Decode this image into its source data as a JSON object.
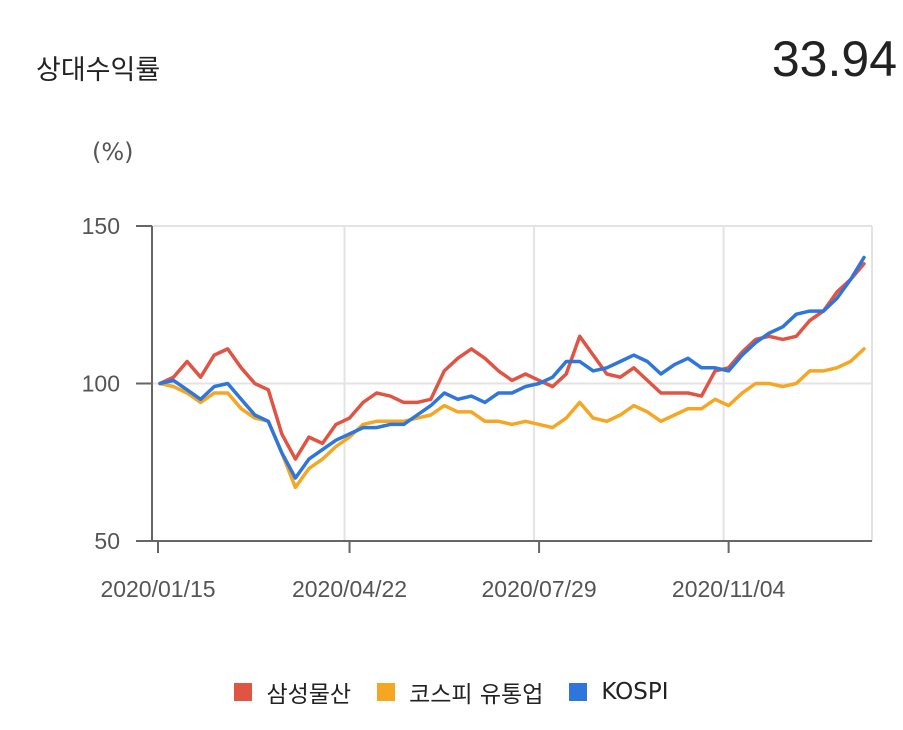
{
  "header": {
    "title": "상대수익률",
    "value": "33.94"
  },
  "chart_data": {
    "type": "line",
    "unit_label": "(%)",
    "ylim": [
      50,
      150
    ],
    "y_ticks": [
      {
        "value": 150,
        "label": "150"
      },
      {
        "value": 100,
        "label": "100"
      },
      {
        "value": 50,
        "label": "50"
      }
    ],
    "x_ticks": [
      {
        "index": 0,
        "label": "2020/01/15"
      },
      {
        "index": 14,
        "label": "2020/04/22"
      },
      {
        "index": 28,
        "label": "2020/07/29"
      },
      {
        "index": 42,
        "label": "2020/11/04"
      }
    ],
    "grid": true,
    "legend_position": "bottom",
    "series": [
      {
        "name": "삼성물산",
        "color": "#e05444",
        "values": [
          100,
          102,
          107,
          102,
          109,
          111,
          105,
          100,
          98,
          84,
          76,
          83,
          81,
          87,
          89,
          94,
          97,
          96,
          94,
          94,
          95,
          104,
          108,
          111,
          108,
          104,
          101,
          103,
          101,
          99,
          103,
          115,
          109,
          103,
          102,
          105,
          101,
          97,
          97,
          97,
          96,
          104,
          105,
          110,
          114,
          115,
          114,
          115,
          120,
          123,
          129,
          133,
          138
        ]
      },
      {
        "name": "코스피 유통업",
        "color": "#f5a623",
        "values": [
          100,
          99,
          97,
          94,
          97,
          97,
          92,
          89,
          88,
          78,
          67,
          73,
          76,
          80,
          83,
          87,
          88,
          88,
          88,
          89,
          90,
          93,
          91,
          91,
          88,
          88,
          87,
          88,
          87,
          86,
          89,
          94,
          89,
          88,
          90,
          93,
          91,
          88,
          90,
          92,
          92,
          95,
          93,
          97,
          100,
          100,
          99,
          100,
          104,
          104,
          105,
          107,
          111
        ]
      },
      {
        "name": "KOSPI",
        "color": "#2e76db",
        "values": [
          100,
          101,
          98,
          95,
          99,
          100,
          95,
          90,
          88,
          78,
          70,
          76,
          79,
          82,
          84,
          86,
          86,
          87,
          87,
          90,
          93,
          97,
          95,
          96,
          94,
          97,
          97,
          99,
          100,
          102,
          107,
          107,
          104,
          105,
          107,
          109,
          107,
          103,
          106,
          108,
          105,
          105,
          104,
          109,
          113,
          116,
          118,
          122,
          123,
          123,
          127,
          133,
          140
        ]
      }
    ]
  }
}
